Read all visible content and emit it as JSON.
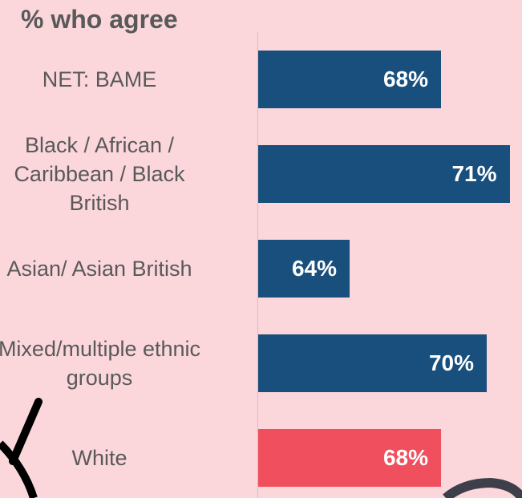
{
  "chart_data": {
    "type": "bar",
    "orientation": "horizontal",
    "title": "% who agree",
    "categories": [
      "NET: BAME",
      "Black / African /\nCaribbean / Black\nBritish",
      "Asian/ Asian British",
      "Mixed/multiple ethnic\ngroups",
      "White"
    ],
    "values": [
      68,
      71,
      64,
      70,
      68
    ],
    "value_labels": [
      "68%",
      "71%",
      "64%",
      "70%",
      "68%"
    ],
    "colors": [
      "#184f7d",
      "#184f7d",
      "#184f7d",
      "#184f7d",
      "#f04f5d"
    ],
    "xlim": [
      60,
      72
    ],
    "grid": false,
    "legend": "none"
  }
}
